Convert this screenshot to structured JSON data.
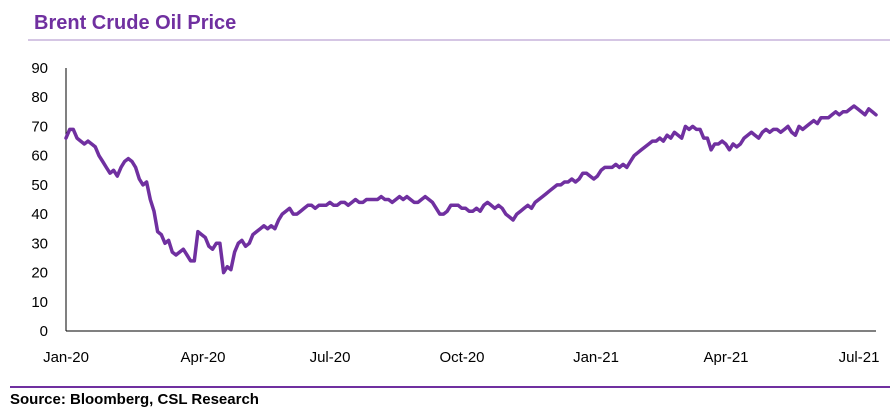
{
  "colors": {
    "accent": "#7030a0",
    "line": "#7030a0",
    "rule": "#d5c6e4",
    "text": "#000000"
  },
  "source": "Source: Bloomberg, CSL Research",
  "chart_data": {
    "type": "line",
    "title": "Brent Crude Oil Price",
    "xlabel": "",
    "ylabel": "",
    "ylim": [
      0,
      90
    ],
    "yticks": [
      0,
      10,
      20,
      30,
      40,
      50,
      60,
      70,
      80,
      90
    ],
    "xticks": [
      "Jan-20",
      "Apr-20",
      "Jul-20",
      "Oct-20",
      "Jan-21",
      "Apr-21",
      "Jul-21"
    ],
    "grid": false,
    "series": [
      {
        "values": [
          66,
          69,
          69,
          66,
          65,
          64,
          65,
          64,
          63,
          60,
          58,
          56,
          54,
          55,
          53,
          56,
          58,
          59,
          58,
          56,
          52,
          50,
          51,
          45,
          41,
          34,
          33,
          30,
          31,
          27,
          26,
          27,
          28,
          26,
          24,
          24,
          34,
          33,
          32,
          29,
          28,
          30,
          30,
          20,
          22,
          21,
          27,
          30,
          31,
          29,
          30,
          33,
          34,
          35,
          36,
          35,
          36,
          35,
          38,
          40,
          41,
          42,
          40,
          40,
          41,
          42,
          43,
          43,
          42,
          43,
          43,
          43,
          44,
          43,
          43,
          44,
          44,
          43,
          44,
          45,
          44,
          44,
          45,
          45,
          45,
          45,
          46,
          45,
          45,
          44,
          45,
          46,
          45,
          46,
          45,
          44,
          44,
          45,
          46,
          45,
          44,
          42,
          40,
          40,
          41,
          43,
          43,
          43,
          42,
          42,
          41,
          41,
          42,
          41,
          43,
          44,
          43,
          42,
          43,
          42,
          40,
          39,
          38,
          40,
          41,
          42,
          43,
          42,
          44,
          45,
          46,
          47,
          48,
          49,
          50,
          50,
          51,
          51,
          52,
          51,
          52,
          54,
          54,
          53,
          52,
          53,
          55,
          56,
          56,
          56,
          57,
          56,
          57,
          56,
          58,
          60,
          61,
          62,
          63,
          64,
          65,
          65,
          66,
          65,
          67,
          66,
          68,
          67,
          66,
          70,
          69,
          70,
          69,
          69,
          66,
          66,
          62,
          64,
          64,
          65,
          64,
          62,
          64,
          63,
          64,
          66,
          67,
          68,
          67,
          66,
          68,
          69,
          68,
          69,
          69,
          68,
          69,
          70,
          68,
          67,
          70,
          69,
          70,
          71,
          72,
          71,
          73,
          73,
          73,
          74,
          75,
          74,
          75,
          75,
          76,
          77,
          76,
          75,
          74,
          76,
          75,
          74
        ],
        "x_range": [
          "Jan-20",
          "Jul-21"
        ]
      }
    ]
  }
}
